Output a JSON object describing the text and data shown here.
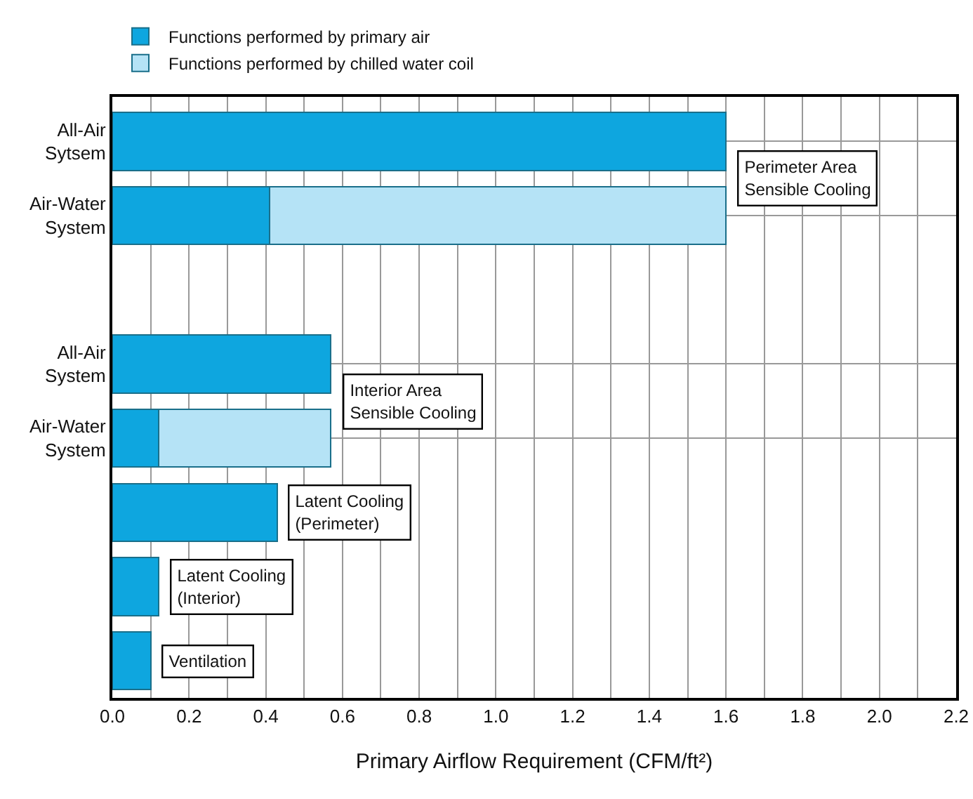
{
  "chart_data": {
    "type": "bar",
    "orientation": "horizontal",
    "stacked": true,
    "categories": [
      "All-Air Sytsem",
      "Air-Water System",
      null,
      "All-Air System",
      "Air-Water System",
      null,
      null,
      null
    ],
    "series": [
      {
        "name": "Functions performed by primary air",
        "color": "#0ea6df",
        "values": [
          1.6,
          0.41,
          null,
          0.57,
          0.12,
          0.43,
          0.12,
          0.1
        ]
      },
      {
        "name": "Functions performed by chilled water coil",
        "color": "#b5e3f6",
        "values": [
          null,
          1.19,
          null,
          null,
          0.45,
          null,
          null,
          null
        ]
      }
    ],
    "xlim": [
      0,
      2.2
    ],
    "xticks": [
      {
        "value": 0,
        "label": "0.0"
      },
      {
        "value": 0.2,
        "label": "0.2"
      },
      {
        "value": 0.4,
        "label": "0.4"
      },
      {
        "value": 0.6,
        "label": "0.6"
      },
      {
        "value": 0.8,
        "label": "0.8"
      },
      {
        "value": 1,
        "label": "1.0"
      },
      {
        "value": 1.2,
        "label": "1.2"
      },
      {
        "value": 1.4,
        "label": "1.4"
      },
      {
        "value": 1.6,
        "label": "1.6"
      },
      {
        "value": 1.8,
        "label": "1.8"
      },
      {
        "value": 2,
        "label": "2.0"
      },
      {
        "value": 2.2,
        "label": "2.2"
      }
    ],
    "xlabel": "Primary Airflow Requirement (CFM/ft²)",
    "annotations": [
      "Perimeter Area\nSensible Cooling",
      "Interior Area\nSensible Cooling",
      {
        "text": "Latent Cooling\n(Perimeter)",
        "x": 0.43
      },
      {
        "text": "Latent Cooling\n(Interior)",
        "x": 0.12
      },
      {
        "text": "Ventilation",
        "x": 0.1
      }
    ],
    "grid": true,
    "legend": "top left"
  }
}
